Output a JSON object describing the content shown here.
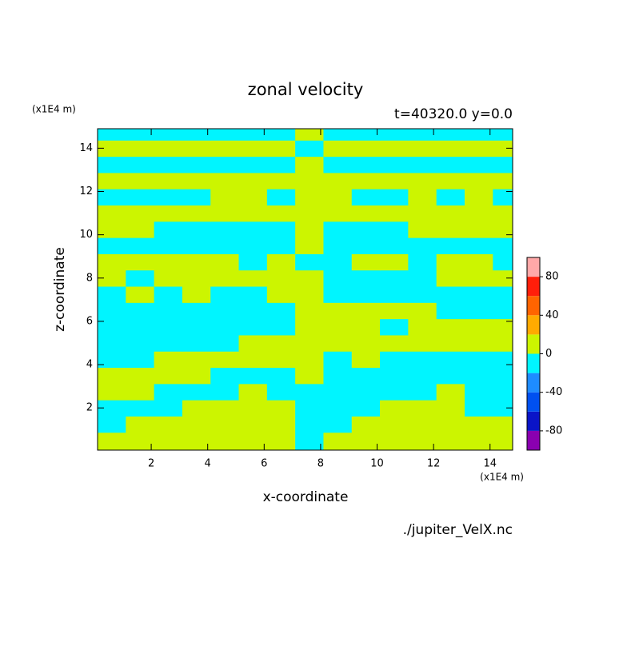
{
  "chart_data": {
    "type": "contour",
    "title": "zonal velocity",
    "subtitle": "t=40320.0 y=0.0",
    "x_label": "x-coordinate",
    "y_label": "z-coordinate",
    "x_unit": "(x1E4 m)",
    "y_unit": "(x1E4 m)",
    "source": "./jupiter_VelX.nc",
    "xlim": [
      0.1,
      14.8
    ],
    "ylim": [
      0.05,
      14.9
    ],
    "xticks": [
      2,
      4,
      6,
      8,
      10,
      12,
      14
    ],
    "yticks": [
      2,
      4,
      6,
      8,
      10,
      12,
      14
    ],
    "x": [
      0.6,
      1.6,
      2.6,
      3.6,
      4.6,
      5.6,
      6.6,
      7.6,
      8.6,
      9.6,
      10.6,
      11.6,
      12.6,
      13.6,
      14.6
    ],
    "y": [
      0.5,
      1.25,
      2,
      2.75,
      3.5,
      4.25,
      5,
      5.75,
      6.5,
      7.25,
      8,
      8.75,
      9.5,
      10.25,
      11,
      11.75,
      12.5,
      13.25,
      14,
      14.75
    ],
    "z": [
      [
        10,
        10,
        10,
        10,
        10,
        10,
        10,
        -10,
        10,
        10,
        10,
        10,
        10,
        10,
        10
      ],
      [
        -10,
        10,
        10,
        10,
        10,
        10,
        10,
        -10,
        -10,
        10,
        10,
        10,
        10,
        10,
        10
      ],
      [
        -10,
        -10,
        -10,
        10,
        10,
        10,
        10,
        -10,
        -10,
        -10,
        10,
        10,
        10,
        -10,
        -10
      ],
      [
        10,
        10,
        -10,
        -10,
        -10,
        10,
        -10,
        -10,
        -10,
        -10,
        -10,
        -10,
        10,
        -10,
        -10
      ],
      [
        10,
        10,
        10,
        10,
        -10,
        -10,
        -10,
        10,
        -10,
        -10,
        -10,
        -10,
        -10,
        -10,
        -10
      ],
      [
        -10,
        -10,
        10,
        10,
        10,
        10,
        10,
        10,
        -10,
        10,
        -10,
        -10,
        -10,
        -10,
        -10
      ],
      [
        -10,
        -10,
        -10,
        -10,
        -10,
        10,
        10,
        10,
        10,
        10,
        10,
        10,
        10,
        10,
        10
      ],
      [
        -10,
        -10,
        -10,
        -10,
        -10,
        -10,
        -10,
        10,
        10,
        10,
        -10,
        10,
        10,
        10,
        10
      ],
      [
        -10,
        -10,
        -10,
        -10,
        -10,
        -10,
        -10,
        10,
        10,
        10,
        10,
        10,
        -10,
        -10,
        -10
      ],
      [
        -10,
        10,
        -10,
        10,
        -10,
        -10,
        10,
        10,
        -10,
        -10,
        -10,
        -10,
        -10,
        -10,
        -10
      ],
      [
        10,
        -10,
        10,
        10,
        10,
        10,
        10,
        10,
        -10,
        -10,
        -10,
        -10,
        10,
        10,
        10
      ],
      [
        10,
        10,
        10,
        10,
        10,
        -10,
        10,
        -10,
        -10,
        10,
        10,
        -10,
        10,
        10,
        -10
      ],
      [
        -10,
        -10,
        -10,
        -10,
        -10,
        -10,
        -10,
        10,
        -10,
        -10,
        -10,
        -10,
        -10,
        -10,
        -10
      ],
      [
        10,
        10,
        -10,
        -10,
        -10,
        -10,
        -10,
        10,
        -10,
        -10,
        -10,
        10,
        10,
        10,
        10
      ],
      [
        10,
        10,
        10,
        10,
        10,
        10,
        10,
        10,
        10,
        10,
        10,
        10,
        10,
        10,
        10
      ],
      [
        -10,
        -10,
        -10,
        -10,
        10,
        10,
        -10,
        10,
        10,
        -10,
        -10,
        10,
        -10,
        10,
        -10
      ],
      [
        10,
        10,
        10,
        10,
        10,
        10,
        10,
        10,
        10,
        10,
        10,
        10,
        10,
        10,
        10
      ],
      [
        -10,
        -10,
        -10,
        -10,
        -10,
        -10,
        -10,
        10,
        -10,
        -10,
        -10,
        -10,
        -10,
        -10,
        -10
      ],
      [
        10,
        10,
        10,
        10,
        10,
        10,
        10,
        -10,
        10,
        10,
        10,
        10,
        10,
        10,
        10
      ],
      [
        -10,
        -10,
        -10,
        -10,
        -10,
        -10,
        -10,
        10,
        -10,
        -10,
        -10,
        -10,
        -10,
        -10,
        -10
      ]
    ],
    "colorbar": {
      "levels": [
        -100,
        -80,
        -60,
        -40,
        -20,
        0,
        20,
        40,
        60,
        80,
        100
      ],
      "colors": [
        "#8a00b0",
        "#0a14c8",
        "#0050f0",
        "#1e8cff",
        "#00f5ff",
        "#ccf500",
        "#ffaa00",
        "#ff6400",
        "#ff1e0a",
        "#ffa8a8"
      ],
      "ticks": [
        -80,
        -40,
        0,
        40,
        80
      ]
    }
  }
}
